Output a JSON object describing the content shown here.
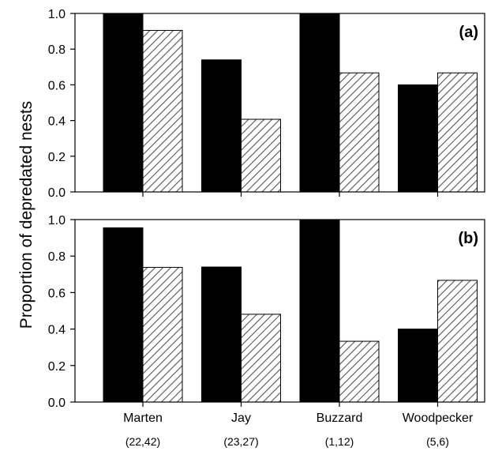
{
  "figure": {
    "ylabel": "Proportion of depredated nests",
    "categories": [
      "Marten",
      "Jay",
      "Buzzard",
      "Woodpecker"
    ],
    "sample_sizes": [
      "(22,42)",
      "(23,27)",
      "(1,12)",
      "(5,6)"
    ],
    "series_styles": [
      {
        "fill": "#000000",
        "pattern": "solid"
      },
      {
        "fill": "#ffffff",
        "pattern": "diagonal-hatch",
        "hatch_color": "#555555"
      }
    ]
  },
  "chart_data": [
    {
      "type": "bar",
      "panel_label": "(a)",
      "categories": [
        "Marten",
        "Jay",
        "Buzzard",
        "Woodpecker"
      ],
      "series": [
        {
          "values": [
            1.0,
            0.74,
            1.0,
            0.6
          ]
        },
        {
          "values": [
            0.905,
            0.407,
            0.667,
            0.667
          ]
        }
      ],
      "ylim": [
        0,
        1.0
      ],
      "yticks": [
        "0.0",
        "0.2",
        "0.4",
        "0.6",
        "0.8",
        "1.0"
      ],
      "grid": false,
      "legend": "none"
    },
    {
      "type": "bar",
      "panel_label": "(b)",
      "categories": [
        "Marten",
        "Jay",
        "Buzzard",
        "Woodpecker"
      ],
      "series": [
        {
          "values": [
            0.955,
            0.74,
            1.0,
            0.4
          ]
        },
        {
          "values": [
            0.738,
            0.481,
            0.333,
            0.667
          ]
        }
      ],
      "ylim": [
        0,
        1.0
      ],
      "yticks": [
        "0.0",
        "0.2",
        "0.4",
        "0.6",
        "0.8",
        "1.0"
      ],
      "grid": false,
      "legend": "none"
    }
  ]
}
